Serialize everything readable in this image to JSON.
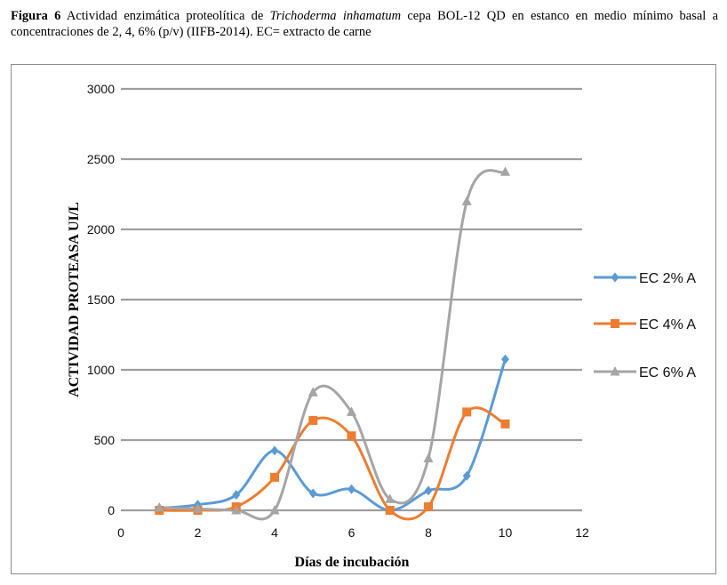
{
  "caption": {
    "label": "Figura 6",
    "text_before": " Actividad enzimática proteolítica de ",
    "italic": "Trichoderma inhamatum",
    "text_after": " cepa BOL-12 QD en estanco en medio mínimo basal a concentraciones de 2, 4, 6% (p/v) (IIFB-2014). EC= extracto de carne"
  },
  "chart_data": {
    "type": "line",
    "title": "",
    "xlabel": "Días de incubación",
    "ylabel": "ACTIVIDAD PROTEASA UI/L",
    "xlim": [
      0,
      12
    ],
    "ylim": [
      0,
      3000
    ],
    "x_ticks": [
      "0",
      "2",
      "4",
      "6",
      "8",
      "10",
      "12"
    ],
    "y_ticks": [
      "0",
      "500",
      "1000",
      "1500",
      "2000",
      "2500",
      "3000"
    ],
    "grid": "horizontal",
    "legend_position": "right",
    "x": [
      1,
      2,
      3,
      4,
      5,
      6,
      7,
      8,
      9,
      10
    ],
    "series": [
      {
        "name": "EC 2% A",
        "color": "#5b9bd5",
        "marker": "diamond",
        "values": [
          15,
          40,
          110,
          425,
          120,
          150,
          0,
          140,
          245,
          1075
        ]
      },
      {
        "name": "EC 4% A",
        "color": "#ed7d31",
        "marker": "square",
        "values": [
          0,
          0,
          25,
          235,
          640,
          530,
          0,
          25,
          700,
          615
        ]
      },
      {
        "name": "EC 6% A",
        "color": "#a5a5a5",
        "marker": "triangle",
        "values": [
          20,
          10,
          0,
          0,
          840,
          700,
          80,
          370,
          2200,
          2410
        ]
      }
    ]
  }
}
